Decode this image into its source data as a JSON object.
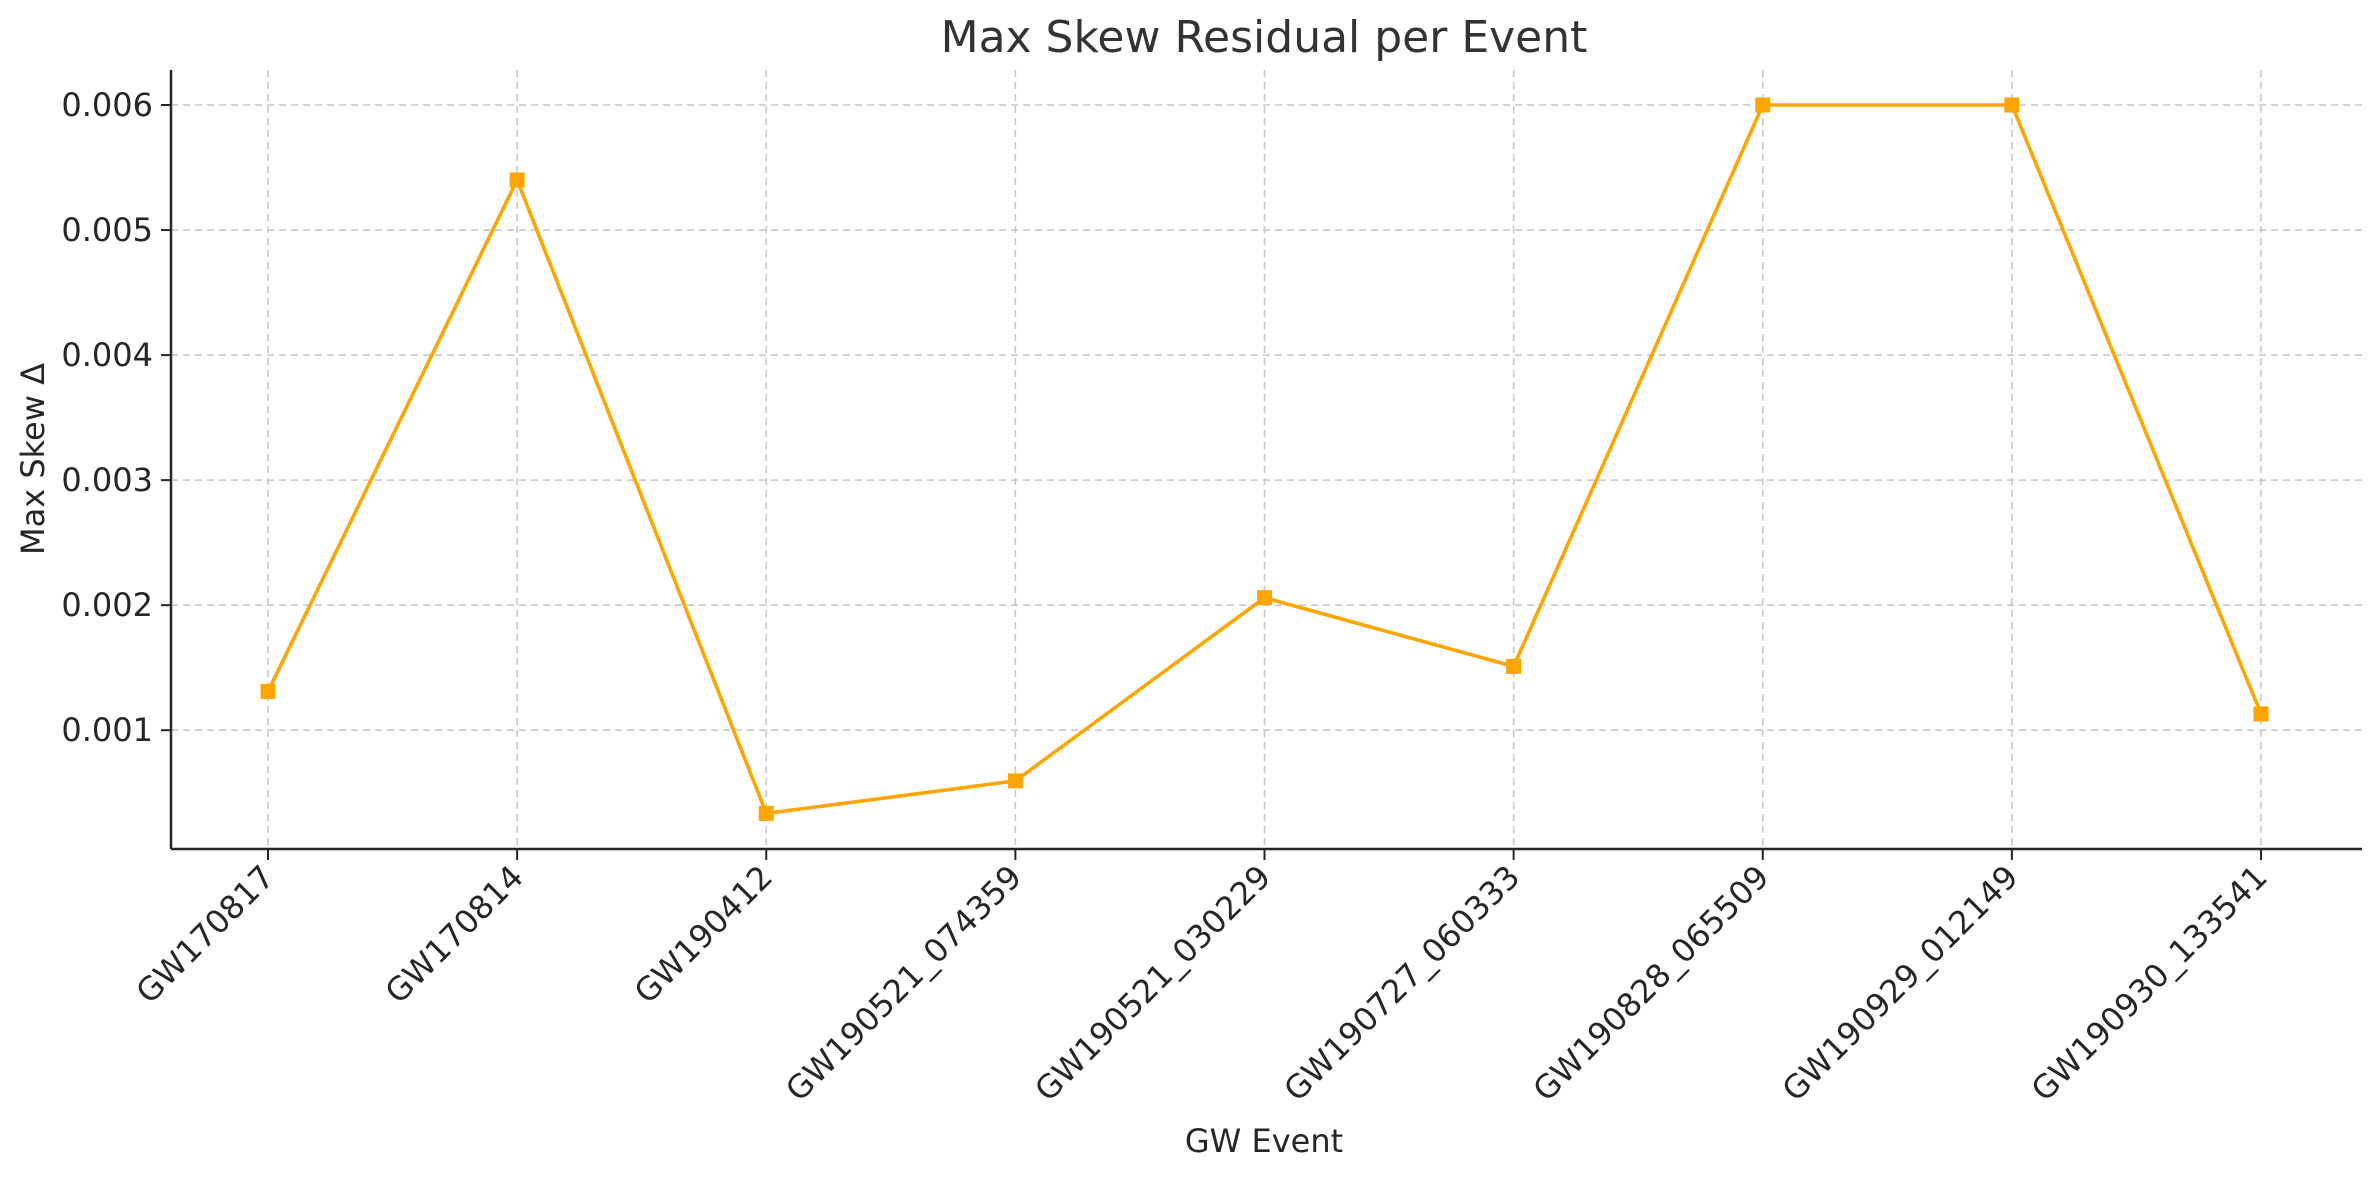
{
  "chart_data": {
    "type": "line",
    "title": "Max Skew Residual per Event",
    "xlabel": "GW Event",
    "ylabel": "Max Skew Δ",
    "categories": [
      "GW170817",
      "GW170814",
      "GW190412",
      "GW190521_074359",
      "GW190521_030229",
      "GW190727_060333",
      "GW190828_065509",
      "GW190929_012149",
      "GW190930_133541"
    ],
    "series": [
      {
        "values": [
          0.00131,
          0.0054,
          0.000335,
          0.000595,
          0.00206,
          0.00151,
          0.006,
          0.006,
          0.00113
        ],
        "color": "#FFA500",
        "marker": "square"
      }
    ],
    "ylim": [
      5e-05,
      0.00628
    ],
    "yticks": [
      0.001,
      0.002,
      0.003,
      0.004,
      0.005,
      0.006
    ],
    "ytick_labels": [
      "0.001",
      "0.002",
      "0.003",
      "0.004",
      "0.005",
      "0.006"
    ],
    "grid": true,
    "x_tick_rotation_deg": 45
  }
}
